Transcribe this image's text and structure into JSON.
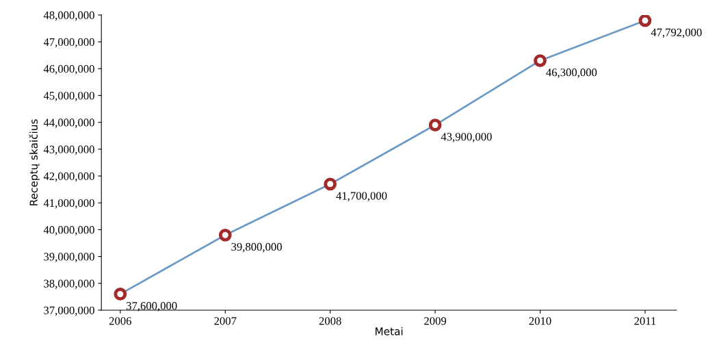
{
  "chart_data": {
    "type": "line",
    "xlabel": "Metai",
    "ylabel": "Receptų skaičius",
    "categories": [
      "2006",
      "2007",
      "2008",
      "2009",
      "2010",
      "2011"
    ],
    "series": [
      {
        "color": "#6b9ac4",
        "colors": [
          "#a32a2a",
          "#a32a2a",
          "#a32a2a",
          "#a32a2a",
          "#a32a2a",
          "#a32a2a"
        ],
        "values": [
          37600000,
          39800000,
          41700000,
          43900000,
          46300000,
          47792000
        ],
        "value_labels": [
          "37,600,000",
          "39,800,000",
          "41,700,000",
          "43,900,000",
          "46,300,000",
          "47,792,000"
        ]
      }
    ],
    "ylim": [
      37000000,
      48000000
    ],
    "yticks": [
      {
        "value": 37000000,
        "label": "37,000,000"
      },
      {
        "value": 38000000,
        "label": "38,000,000"
      },
      {
        "value": 39000000,
        "label": "39,000,000"
      },
      {
        "value": 40000000,
        "label": "40,000,000"
      },
      {
        "value": 41000000,
        "label": "41,000,000"
      },
      {
        "value": 42000000,
        "label": "42,000,000"
      },
      {
        "value": 43000000,
        "label": "43,000,000"
      },
      {
        "value": 44000000,
        "label": "44,000,000"
      },
      {
        "value": 45000000,
        "label": "45,000,000"
      },
      {
        "value": 46000000,
        "label": "46,000,000"
      },
      {
        "value": 47000000,
        "label": "47,000,000"
      },
      {
        "value": 48000000,
        "label": "48,000,000"
      }
    ],
    "marker": "circle",
    "line_style": "solid",
    "grid": false,
    "legend": false
  }
}
